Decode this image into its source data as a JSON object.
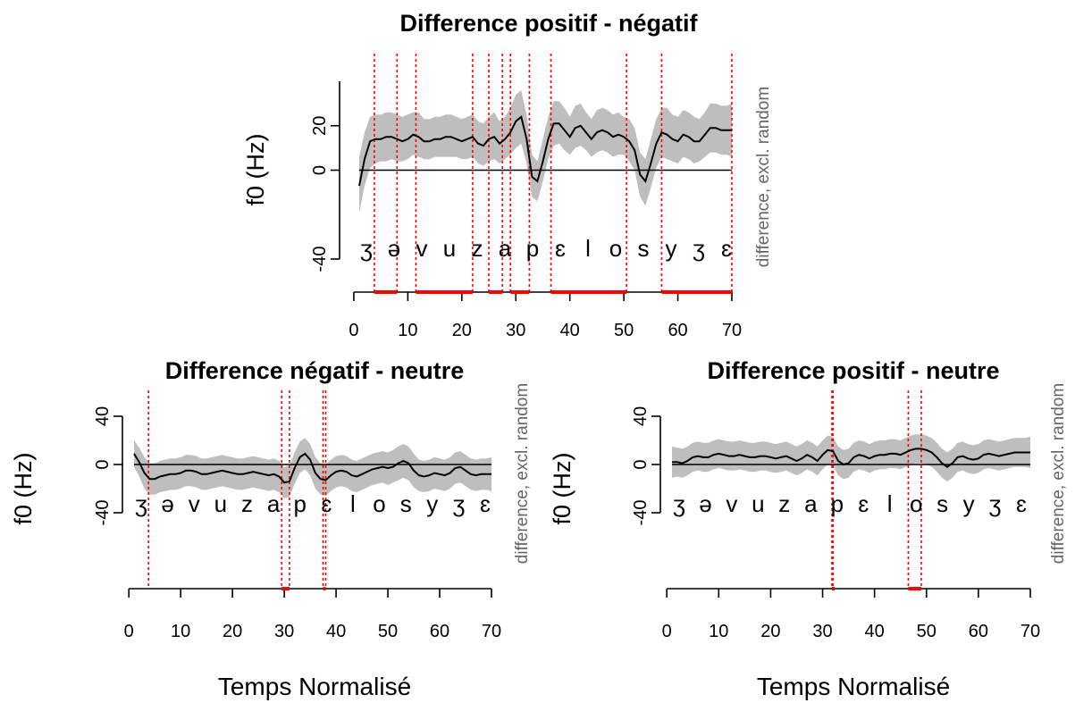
{
  "colors": {
    "band": "#bebebe",
    "line": "#000000",
    "significance": "#ff0000"
  },
  "chart_data": [
    {
      "type": "line",
      "title": "Difference positif - négatif",
      "ylabel": "f0 (Hz)",
      "xlabel": "",
      "side_label": "difference, excl. random",
      "xlim": [
        1,
        70
      ],
      "ylim": [
        -40,
        40
      ],
      "x_ticks": [
        0,
        10,
        20,
        30,
        40,
        50,
        60,
        70
      ],
      "y_ticks": [
        -40,
        0,
        20
      ],
      "y_tick_labels": [
        "-40",
        "0",
        "20"
      ],
      "phonemes": [
        "ʒ",
        "ə",
        "v",
        "u",
        "z",
        "a",
        "p",
        "ɛ",
        "l",
        "o",
        "s",
        "y",
        "ʒ",
        "ɛ"
      ],
      "grid": false,
      "series": [
        {
          "x": [
            1,
            2,
            3,
            4,
            5,
            6,
            7,
            8,
            9,
            10,
            11,
            12,
            13,
            14,
            15,
            16,
            17,
            18,
            19,
            20,
            21,
            22,
            23,
            24,
            25,
            26,
            27,
            28,
            29,
            30,
            31,
            32,
            33,
            34,
            35,
            36,
            37,
            38,
            39,
            40,
            41,
            42,
            43,
            44,
            45,
            46,
            47,
            48,
            49,
            50,
            51,
            52,
            53,
            54,
            55,
            56,
            57,
            58,
            59,
            60,
            61,
            62,
            63,
            64,
            65,
            66,
            67,
            68,
            69,
            70
          ],
          "y": [
            -7,
            5,
            13,
            14,
            14,
            15,
            15,
            14,
            13,
            14,
            16,
            15,
            13,
            13,
            14,
            14,
            15,
            15,
            14,
            13,
            14,
            15,
            12,
            11,
            14,
            15,
            12,
            14,
            17,
            22,
            24,
            14,
            -3,
            -5,
            4,
            14,
            21,
            21,
            18,
            15,
            19,
            20,
            17,
            14,
            17,
            18,
            17,
            15,
            16,
            15,
            13,
            9,
            -2,
            -5,
            3,
            12,
            17,
            16,
            14,
            13,
            16,
            15,
            13,
            13,
            16,
            19,
            19,
            18,
            18,
            18
          ],
          "lower": [
            -19,
            -7,
            1,
            3,
            4,
            4,
            5,
            4,
            4,
            5,
            7,
            6,
            5,
            5,
            6,
            6,
            6,
            6,
            6,
            5,
            5,
            6,
            3,
            2,
            4,
            5,
            3,
            5,
            7,
            10,
            12,
            3,
            -12,
            -14,
            -5,
            5,
            11,
            12,
            9,
            7,
            10,
            11,
            9,
            6,
            8,
            9,
            8,
            6,
            7,
            7,
            4,
            0,
            -12,
            -16,
            -8,
            1,
            6,
            5,
            4,
            3,
            6,
            5,
            3,
            4,
            6,
            8,
            8,
            7,
            7,
            6
          ],
          "upper": [
            6,
            17,
            24,
            25,
            25,
            26,
            26,
            25,
            24,
            25,
            26,
            26,
            23,
            23,
            24,
            24,
            25,
            25,
            24,
            23,
            24,
            25,
            22,
            21,
            24,
            26,
            22,
            24,
            28,
            34,
            36,
            25,
            7,
            4,
            14,
            24,
            31,
            31,
            28,
            24,
            29,
            30,
            26,
            23,
            27,
            28,
            27,
            25,
            26,
            24,
            23,
            19,
            8,
            5,
            14,
            23,
            28,
            28,
            25,
            24,
            27,
            26,
            24,
            23,
            26,
            30,
            30,
            29,
            29,
            30
          ]
        }
      ],
      "significant_regions": [
        [
          3.8,
          8
        ],
        [
          11.5,
          22
        ],
        [
          25,
          27.5
        ],
        [
          29,
          32.5
        ],
        [
          36.5,
          50.5
        ],
        [
          57,
          70
        ]
      ],
      "dashed_lines": [
        3.8,
        8,
        11.5,
        22,
        25,
        27.5,
        29,
        32.5,
        36.5,
        50.5,
        57,
        70
      ]
    },
    {
      "type": "line",
      "title": "Difference négatif - neutre",
      "ylabel": "f0 (Hz)",
      "xlabel": "Temps Normalisé",
      "side_label": "difference, excl. random",
      "xlim": [
        1,
        70
      ],
      "ylim": [
        -40,
        40
      ],
      "x_ticks": [
        0,
        10,
        20,
        30,
        40,
        50,
        60,
        70
      ],
      "y_ticks": [
        -40,
        0,
        40
      ],
      "y_tick_labels": [
        "-40",
        "0",
        "40"
      ],
      "phonemes": [
        "ʒ",
        "ə",
        "v",
        "u",
        "z",
        "a",
        "p",
        "ɛ",
        "l",
        "o",
        "s",
        "y",
        "ʒ",
        "ɛ"
      ],
      "grid": false,
      "series": [
        {
          "x": [
            1,
            2,
            3,
            4,
            5,
            6,
            7,
            8,
            9,
            10,
            11,
            12,
            13,
            14,
            15,
            16,
            17,
            18,
            19,
            20,
            21,
            22,
            23,
            24,
            25,
            26,
            27,
            28,
            29,
            30,
            31,
            32,
            33,
            34,
            35,
            36,
            37,
            38,
            39,
            40,
            41,
            42,
            43,
            44,
            45,
            46,
            47,
            48,
            49,
            50,
            51,
            52,
            53,
            54,
            55,
            56,
            57,
            58,
            59,
            60,
            61,
            62,
            63,
            64,
            65,
            66,
            67,
            68,
            69,
            70
          ],
          "y": [
            9,
            2,
            -7,
            -12,
            -12,
            -10,
            -9,
            -8,
            -8,
            -7,
            -5,
            -5,
            -6,
            -8,
            -8,
            -7,
            -6,
            -5,
            -6,
            -7,
            -8,
            -8,
            -7,
            -6,
            -7,
            -8,
            -9,
            -8,
            -10,
            -15,
            -14,
            -3,
            6,
            9,
            4,
            -7,
            -12,
            -13,
            -9,
            -6,
            -5,
            -6,
            -9,
            -10,
            -8,
            -6,
            -4,
            -3,
            -2,
            -3,
            -2,
            1,
            3,
            1,
            -5,
            -9,
            -10,
            -9,
            -7,
            -8,
            -9,
            -7,
            -3,
            -2,
            -5,
            -8,
            -9,
            -8,
            -8,
            -8
          ],
          "lower": [
            -2,
            -10,
            -20,
            -25,
            -25,
            -23,
            -22,
            -21,
            -21,
            -20,
            -18,
            -18,
            -19,
            -21,
            -21,
            -20,
            -19,
            -18,
            -19,
            -20,
            -21,
            -21,
            -20,
            -19,
            -20,
            -21,
            -22,
            -21,
            -23,
            -28,
            -27,
            -16,
            -7,
            -4,
            -9,
            -20,
            -25,
            -26,
            -22,
            -19,
            -18,
            -19,
            -22,
            -23,
            -21,
            -19,
            -17,
            -16,
            -15,
            -17,
            -15,
            -13,
            -11,
            -13,
            -19,
            -22,
            -23,
            -22,
            -20,
            -21,
            -22,
            -20,
            -16,
            -15,
            -18,
            -21,
            -22,
            -21,
            -21,
            -22
          ],
          "upper": [
            20,
            14,
            6,
            1,
            1,
            3,
            4,
            5,
            5,
            6,
            8,
            8,
            7,
            5,
            5,
            6,
            7,
            8,
            7,
            6,
            5,
            5,
            6,
            7,
            6,
            5,
            4,
            5,
            3,
            -2,
            -1,
            10,
            19,
            22,
            17,
            6,
            1,
            0,
            4,
            7,
            8,
            7,
            4,
            3,
            5,
            7,
            9,
            10,
            11,
            10,
            12,
            15,
            17,
            15,
            9,
            4,
            3,
            4,
            6,
            5,
            4,
            6,
            10,
            11,
            8,
            5,
            4,
            5,
            5,
            6
          ]
        }
      ],
      "significant_regions": [
        [
          29.5,
          31
        ],
        [
          37.5,
          38
        ]
      ],
      "dashed_lines": [
        3.8,
        29.5,
        31,
        37.5,
        38
      ]
    },
    {
      "type": "line",
      "title": "Difference positif - neutre",
      "ylabel": "f0 (Hz)",
      "xlabel": "Temps Normalisé",
      "side_label": "difference, excl. random",
      "xlim": [
        1,
        70
      ],
      "ylim": [
        -40,
        40
      ],
      "x_ticks": [
        0,
        10,
        20,
        30,
        40,
        50,
        60,
        70
      ],
      "y_ticks": [
        -40,
        0,
        40
      ],
      "y_tick_labels": [
        "-40",
        "0",
        "40"
      ],
      "phonemes": [
        "ʒ",
        "ə",
        "v",
        "u",
        "z",
        "a",
        "p",
        "ɛ",
        "l",
        "o",
        "s",
        "y",
        "ʒ",
        "ɛ"
      ],
      "grid": false,
      "series": [
        {
          "x": [
            1,
            2,
            3,
            4,
            5,
            6,
            7,
            8,
            9,
            10,
            11,
            12,
            13,
            14,
            15,
            16,
            17,
            18,
            19,
            20,
            21,
            22,
            23,
            24,
            25,
            26,
            27,
            28,
            29,
            30,
            31,
            32,
            33,
            34,
            35,
            36,
            37,
            38,
            39,
            40,
            41,
            42,
            43,
            44,
            45,
            46,
            47,
            48,
            49,
            50,
            51,
            52,
            53,
            54,
            55,
            56,
            57,
            58,
            59,
            60,
            61,
            62,
            63,
            64,
            65,
            66,
            67,
            68,
            69,
            70
          ],
          "y": [
            2,
            2,
            1,
            3,
            6,
            7,
            6,
            6,
            8,
            9,
            8,
            7,
            7,
            8,
            7,
            6,
            6,
            7,
            7,
            6,
            5,
            6,
            7,
            5,
            3,
            5,
            8,
            6,
            3,
            8,
            12,
            11,
            3,
            0,
            1,
            6,
            8,
            7,
            5,
            7,
            8,
            8,
            9,
            9,
            8,
            10,
            12,
            13,
            13,
            12,
            10,
            6,
            1,
            -2,
            1,
            6,
            7,
            5,
            4,
            5,
            8,
            9,
            8,
            7,
            8,
            9,
            10,
            10,
            10,
            10
          ],
          "lower": [
            -11,
            -10,
            -11,
            -9,
            -6,
            -5,
            -6,
            -6,
            -4,
            -3,
            -4,
            -5,
            -5,
            -4,
            -5,
            -6,
            -6,
            -5,
            -5,
            -6,
            -7,
            -6,
            -5,
            -7,
            -9,
            -7,
            -4,
            -6,
            -9,
            -4,
            0,
            -1,
            -9,
            -12,
            -11,
            -6,
            -4,
            -5,
            -7,
            -5,
            -4,
            -4,
            -3,
            -3,
            -4,
            -2,
            0,
            1,
            1,
            0,
            -2,
            -6,
            -11,
            -14,
            -11,
            -6,
            -5,
            -7,
            -8,
            -7,
            -4,
            -3,
            -4,
            -5,
            -4,
            -3,
            -2,
            -2,
            -2,
            -3
          ],
          "upper": [
            15,
            14,
            13,
            15,
            18,
            19,
            18,
            18,
            20,
            21,
            20,
            19,
            19,
            20,
            19,
            18,
            18,
            19,
            19,
            18,
            17,
            18,
            19,
            17,
            15,
            17,
            20,
            18,
            15,
            20,
            24,
            23,
            15,
            12,
            13,
            18,
            20,
            19,
            17,
            19,
            20,
            20,
            21,
            21,
            20,
            22,
            24,
            25,
            25,
            24,
            22,
            18,
            13,
            10,
            13,
            18,
            19,
            17,
            16,
            17,
            20,
            21,
            20,
            19,
            20,
            21,
            22,
            22,
            22,
            23
          ]
        }
      ],
      "significant_regions": [
        [
          31.8,
          32
        ],
        [
          46.5,
          49
        ]
      ],
      "dashed_lines": [
        31.8,
        32,
        46.5,
        49
      ]
    }
  ]
}
